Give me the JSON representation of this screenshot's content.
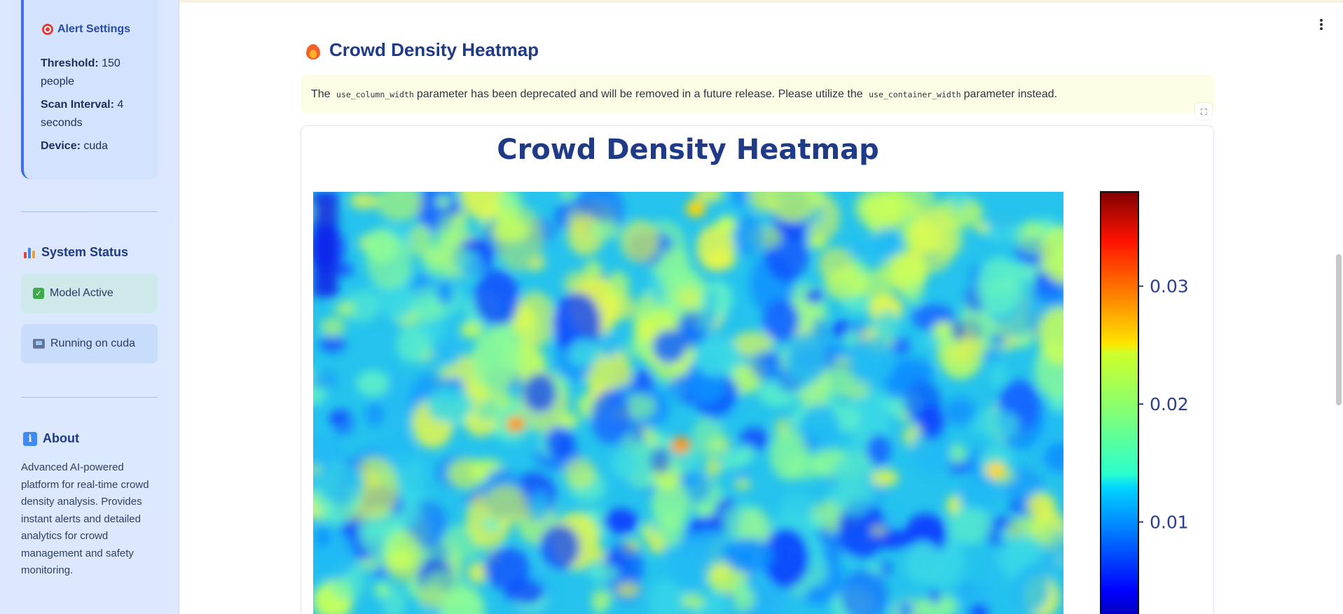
{
  "sidebar": {
    "alert_settings": {
      "title": "Alert Settings",
      "threshold_label": "Threshold:",
      "threshold_value": "150 people",
      "scan_label": "Scan Interval:",
      "scan_value": "4 seconds",
      "device_label": "Device:",
      "device_value": "cuda"
    },
    "system_status": {
      "title": "System Status",
      "model_status": "Model Active",
      "runtime_status": "Running on cuda"
    },
    "about": {
      "title": "About",
      "text": "Advanced AI-powered platform for real-time crowd density analysis. Provides instant alerts and detailed analytics for crowd management and safety monitoring."
    }
  },
  "main": {
    "page_title": "Crowd Density Heatmap",
    "warning": {
      "prefix": "The",
      "code1": "use_column_width",
      "middle": "parameter has been deprecated and will be removed in a future release. Please utilize the",
      "code2": "use_container_width",
      "suffix": "parameter instead."
    }
  },
  "chart_data": {
    "type": "heatmap",
    "title": "Crowd Density Heatmap",
    "colormap": "jet",
    "colorbar_ticks": [
      {
        "value": 0.01,
        "label": "0.01"
      },
      {
        "value": 0.02,
        "label": "0.02"
      },
      {
        "value": 0.03,
        "label": "0.03"
      }
    ],
    "colorbar_range": [
      0.0,
      0.038
    ],
    "hotspots": [
      {
        "x": 0.27,
        "y": 0.55,
        "value": 0.024
      },
      {
        "x": 0.49,
        "y": 0.6,
        "value": 0.026
      },
      {
        "x": 0.51,
        "y": 0.04,
        "value": 0.022
      },
      {
        "x": 0.55,
        "y": 0.08,
        "value": 0.02
      },
      {
        "x": 0.91,
        "y": 0.66,
        "value": 0.021
      }
    ]
  },
  "colors": {
    "accent": "#1f3a86",
    "sidebar_bg": "#dbe7ff",
    "warning_bg": "#fdfde6",
    "status_green_bg": "#cde9ea",
    "status_blue_bg": "#c8dcfb"
  }
}
